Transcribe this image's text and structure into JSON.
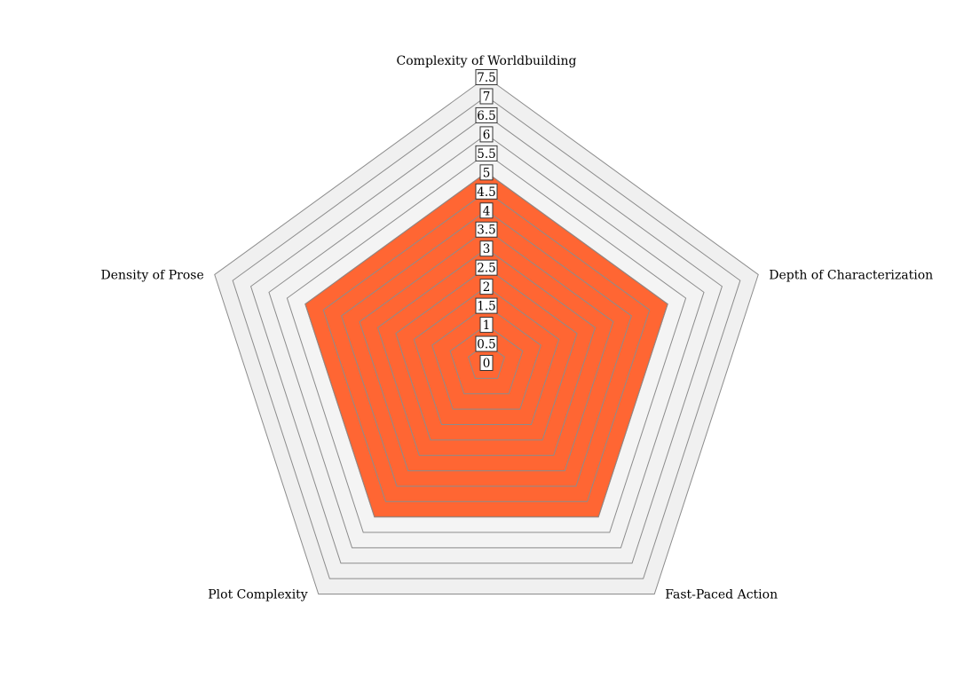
{
  "chart_data": {
    "type": "radar",
    "axes": [
      "Complexity of Worldbuilding",
      "Depth of Characterization",
      "Fast-Paced Action",
      "Plot Complexity",
      "Density of Prose"
    ],
    "series": [
      {
        "values": [
          5,
          5,
          5,
          5,
          5
        ]
      }
    ],
    "range": [
      0,
      7.5
    ],
    "tick_step": 0.5,
    "ticks": [
      "0",
      "0.5",
      "1",
      "1.5",
      "2",
      "2.5",
      "3",
      "3.5",
      "4",
      "4.5",
      "5",
      "5.5",
      "6",
      "6.5",
      "7",
      "7.5"
    ],
    "grid": true,
    "colors": {
      "fill": "#ff6633",
      "fill_edge": "#b8471f",
      "grid_line": "#8c8c8c",
      "band_light": "#ffffff",
      "band_dark": "#f0f0f0"
    }
  }
}
